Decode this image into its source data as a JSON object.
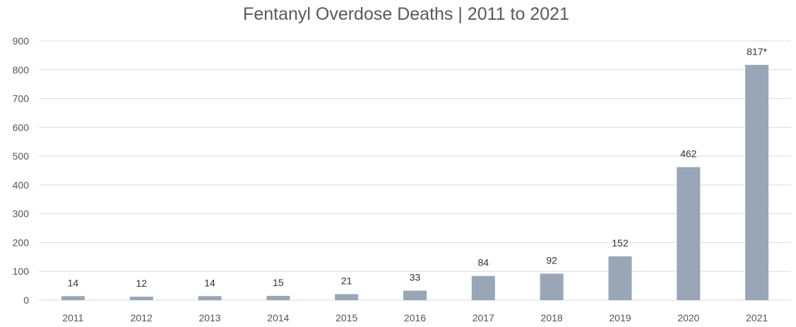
{
  "chart_data": {
    "type": "bar",
    "title": "Fentanyl Overdose Deaths | 2011 to 2021",
    "xlabel": "",
    "ylabel": "",
    "categories": [
      "2011",
      "2012",
      "2013",
      "2014",
      "2015",
      "2016",
      "2017",
      "2018",
      "2019",
      "2020",
      "2021"
    ],
    "values": [
      14,
      12,
      14,
      15,
      21,
      33,
      84,
      92,
      152,
      462,
      817
    ],
    "data_labels": [
      "14",
      "12",
      "14",
      "15",
      "21",
      "33",
      "84",
      "92",
      "152",
      "462",
      "817*"
    ],
    "ylim": [
      0,
      900
    ],
    "yticks": [
      0,
      100,
      200,
      300,
      400,
      500,
      600,
      700,
      800,
      900
    ],
    "grid": true,
    "legend": "none",
    "bar_color": "#98a6b6",
    "grid_color": "#dcdcdc"
  }
}
